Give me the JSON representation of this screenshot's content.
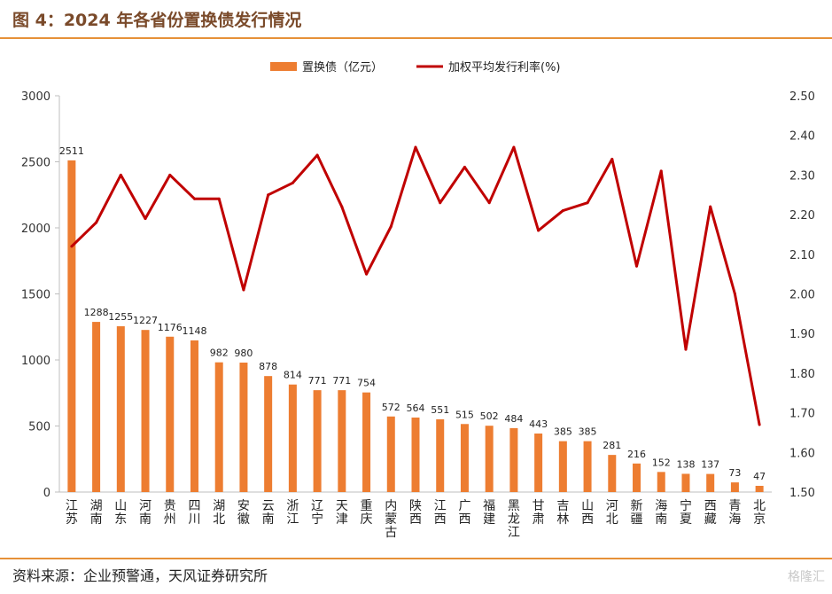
{
  "page": {
    "title": "图 4：2024 年各省份置换债发行情况",
    "source": "资料来源：企业预警通，天风证券研究所",
    "watermark": "格隆汇"
  },
  "colors": {
    "bar": "#ed7d31",
    "line": "#c00000",
    "rule": "#e69138"
  },
  "chart_data": {
    "type": "bar",
    "categories": [
      "江苏",
      "湖南",
      "山东",
      "河南",
      "贵州",
      "四川",
      "湖北",
      "安徽",
      "云南",
      "浙江",
      "辽宁",
      "天津",
      "重庆",
      "内蒙古",
      "陕西",
      "江西",
      "广西",
      "福建",
      "黑龙江",
      "甘肃",
      "吉林",
      "山西",
      "河北",
      "新疆",
      "海南",
      "宁夏",
      "西藏",
      "青海",
      "北京"
    ],
    "category_labels": [
      [
        "江",
        "苏"
      ],
      [
        "湖",
        "南"
      ],
      [
        "山",
        "东"
      ],
      [
        "河",
        "南"
      ],
      [
        "贵",
        "州"
      ],
      [
        "四",
        "川"
      ],
      [
        "湖",
        "北"
      ],
      [
        "安",
        "徽"
      ],
      [
        "云",
        "南"
      ],
      [
        "浙",
        "江"
      ],
      [
        "辽",
        "宁"
      ],
      [
        "天",
        "津"
      ],
      [
        "重",
        "庆"
      ],
      [
        "内",
        "蒙",
        "古"
      ],
      [
        "陕",
        "西"
      ],
      [
        "江",
        "西"
      ],
      [
        "广",
        "西"
      ],
      [
        "福",
        "建"
      ],
      [
        "黑",
        "龙",
        "江"
      ],
      [
        "甘",
        "肃"
      ],
      [
        "吉",
        "林"
      ],
      [
        "山",
        "西"
      ],
      [
        "河",
        "北"
      ],
      [
        "新",
        "疆"
      ],
      [
        "海",
        "南"
      ],
      [
        "宁",
        "夏"
      ],
      [
        "西",
        "藏"
      ],
      [
        "青",
        "海"
      ],
      [
        "北",
        "京"
      ]
    ],
    "series": [
      {
        "name": "置换债（亿元）",
        "type": "bar",
        "axis": "left",
        "values": [
          2511,
          1288,
          1255,
          1227,
          1176,
          1148,
          982,
          980,
          878,
          814,
          771,
          771,
          754,
          572,
          564,
          551,
          515,
          502,
          484,
          443,
          385,
          385,
          281,
          216,
          152,
          138,
          137,
          73,
          47
        ]
      },
      {
        "name": "加权平均发行利率(%)",
        "type": "line",
        "axis": "right",
        "values": [
          2.12,
          2.18,
          2.3,
          2.19,
          2.3,
          2.24,
          2.24,
          2.01,
          2.25,
          2.28,
          2.35,
          2.22,
          2.05,
          2.17,
          2.37,
          2.23,
          2.32,
          2.23,
          2.37,
          2.16,
          2.21,
          2.23,
          2.34,
          2.07,
          2.31,
          1.86,
          2.22,
          2.0,
          1.67
        ]
      }
    ],
    "y_left": {
      "min": 0,
      "max": 3000,
      "ticks": [
        0,
        500,
        1000,
        1500,
        2000,
        2500,
        3000
      ]
    },
    "y_right": {
      "min": 1.5,
      "max": 2.5,
      "ticks": [
        "1.50",
        "1.60",
        "1.70",
        "1.80",
        "1.90",
        "2.00",
        "2.10",
        "2.20",
        "2.30",
        "2.40",
        "2.50"
      ]
    },
    "legend_position": "top-center",
    "grid": false
  }
}
